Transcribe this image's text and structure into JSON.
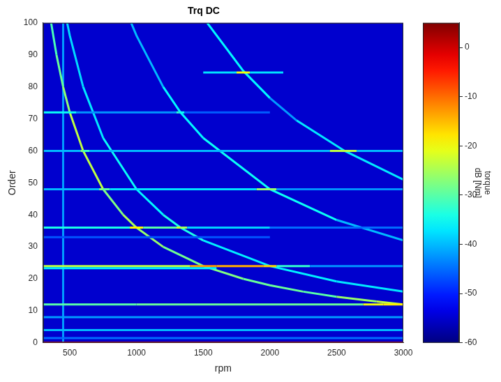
{
  "chart_data": {
    "type": "heatmap",
    "title": "Trq DC",
    "x_label": "rpm",
    "y_label": "Order",
    "xlim": [
      300,
      3000
    ],
    "xticks": [
      500,
      1000,
      1500,
      2000,
      2500,
      3000
    ],
    "ylim": [
      0,
      100
    ],
    "yticks": [
      0,
      10,
      20,
      30,
      40,
      50,
      60,
      70,
      80,
      90,
      100
    ],
    "grid": false,
    "colorbar": {
      "label": [
        "torque",
        "dB [Nm]"
      ],
      "range": [
        -60,
        5
      ],
      "ticks": [
        -60,
        -50,
        -40,
        -30,
        -20,
        -10,
        0
      ]
    },
    "background_value": -55,
    "series": [
      {
        "values": [
          [
            300,
            0,
            0
          ],
          [
            3000,
            0,
            0
          ]
        ]
      },
      {
        "values": [
          [
            300,
            1.5,
            -45
          ],
          [
            3000,
            1.5,
            -45
          ]
        ]
      },
      {
        "values": [
          [
            300,
            4,
            -40
          ],
          [
            3000,
            4,
            -40
          ]
        ]
      },
      {
        "values": [
          [
            300,
            8,
            -42
          ],
          [
            3000,
            8,
            -42
          ]
        ]
      },
      {
        "values": [
          [
            300,
            12,
            -30
          ],
          [
            1000,
            12,
            -30
          ],
          [
            2700,
            12,
            -28
          ],
          [
            2850,
            12,
            -12
          ],
          [
            3000,
            12,
            -25
          ]
        ]
      },
      {
        "values": [
          [
            300,
            23.3,
            -35
          ],
          [
            1600,
            23.3,
            -38
          ]
        ]
      },
      {
        "values": [
          [
            300,
            24,
            -25
          ],
          [
            1400,
            24,
            -22
          ],
          [
            1500,
            24,
            -5
          ],
          [
            1600,
            24,
            -20
          ],
          [
            1950,
            24,
            -8
          ],
          [
            2050,
            24,
            -25
          ],
          [
            2300,
            24,
            -40
          ],
          [
            3000,
            24,
            -45
          ]
        ]
      },
      {
        "values": [
          [
            300,
            33,
            -45
          ],
          [
            2000,
            33,
            -48
          ]
        ]
      },
      {
        "values": [
          [
            300,
            36,
            -38
          ],
          [
            950,
            36,
            -30
          ],
          [
            1000,
            36,
            -8
          ],
          [
            1050,
            36,
            -30
          ],
          [
            1300,
            36,
            -30
          ],
          [
            1330,
            36,
            -15
          ],
          [
            1380,
            36,
            -35
          ],
          [
            2000,
            36,
            -42
          ],
          [
            3000,
            36,
            -48
          ]
        ]
      },
      {
        "values": [
          [
            300,
            48,
            -45
          ],
          [
            720,
            48,
            -35
          ],
          [
            750,
            48,
            -20
          ],
          [
            800,
            48,
            -40
          ],
          [
            1000,
            48,
            -35
          ],
          [
            1900,
            48,
            -40
          ],
          [
            1980,
            48,
            -12
          ],
          [
            2050,
            48,
            -40
          ],
          [
            3000,
            48,
            -45
          ]
        ]
      },
      {
        "values": [
          [
            300,
            60,
            -45
          ],
          [
            580,
            60,
            -35
          ],
          [
            600,
            60,
            -20
          ],
          [
            650,
            60,
            -45
          ],
          [
            2450,
            60,
            -35
          ],
          [
            2560,
            60,
            -12
          ],
          [
            2650,
            60,
            -35
          ],
          [
            3000,
            60,
            -45
          ]
        ]
      },
      {
        "values": [
          [
            300,
            72,
            -45
          ],
          [
            500,
            72,
            -25
          ],
          [
            550,
            72,
            -45
          ],
          [
            1300,
            72,
            -40
          ],
          [
            1320,
            72,
            -25
          ],
          [
            1360,
            72,
            -45
          ],
          [
            2000,
            72,
            -47
          ]
        ]
      },
      {
        "values": [
          [
            1500,
            84.5,
            -45
          ],
          [
            1750,
            84.5,
            -30
          ],
          [
            1800,
            84.5,
            -10
          ],
          [
            1850,
            84.5,
            -30
          ],
          [
            2100,
            84.5,
            -45
          ]
        ]
      },
      {
        "values": [
          [
            360,
            100,
            -32
          ],
          [
            400,
            90,
            -30
          ],
          [
            450,
            80,
            -28
          ],
          [
            500,
            72,
            -25
          ],
          [
            600,
            60,
            -22
          ],
          [
            750,
            48,
            -25
          ],
          [
            900,
            40,
            -30
          ],
          [
            1000,
            36,
            -20
          ],
          [
            1200,
            30,
            -32
          ],
          [
            1500,
            24,
            -25
          ],
          [
            1800,
            20,
            -30
          ],
          [
            2000,
            18,
            -28
          ],
          [
            2250,
            16,
            -30
          ],
          [
            2500,
            14.4,
            -30
          ],
          [
            2800,
            12.9,
            -22
          ],
          [
            3000,
            12,
            -25
          ]
        ]
      },
      {
        "values": [
          [
            480,
            100,
            -38
          ],
          [
            500,
            96,
            -38
          ],
          [
            600,
            80,
            -38
          ],
          [
            750,
            64,
            -36
          ],
          [
            1000,
            48,
            -34
          ],
          [
            1200,
            40,
            -38
          ],
          [
            1330,
            36,
            -30
          ],
          [
            1500,
            32,
            -38
          ],
          [
            2000,
            24,
            -35
          ],
          [
            2500,
            19.2,
            -38
          ],
          [
            3000,
            16,
            -36
          ]
        ]
      },
      {
        "values": [
          [
            960,
            100,
            -40
          ],
          [
            1000,
            96,
            -40
          ],
          [
            1200,
            80,
            -40
          ],
          [
            1330,
            72,
            -32
          ],
          [
            1500,
            64,
            -40
          ],
          [
            2000,
            48,
            -30
          ],
          [
            2500,
            38.4,
            -40
          ],
          [
            3000,
            32,
            -40
          ]
        ]
      },
      {
        "values": [
          [
            1530,
            100,
            -42
          ],
          [
            1800,
            85,
            -30
          ],
          [
            2000,
            76.5,
            -42
          ],
          [
            2200,
            69.5,
            -42
          ],
          [
            2560,
            60,
            -32
          ],
          [
            3000,
            51,
            -42
          ]
        ]
      },
      {
        "values": [
          [
            450,
            0,
            -42
          ],
          [
            450,
            100,
            -42
          ]
        ]
      }
    ]
  }
}
